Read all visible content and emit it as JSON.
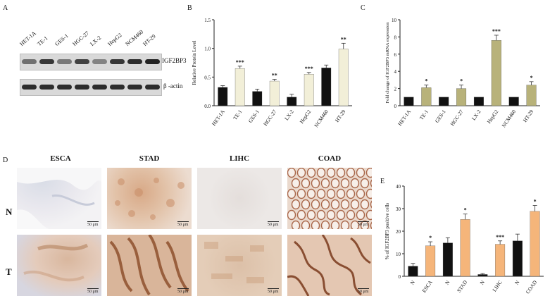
{
  "panels": {
    "A": "A",
    "B": "B",
    "C": "C",
    "D": "D",
    "E": "E"
  },
  "western_blot": {
    "lanes": [
      "HET-1A",
      "TE-1",
      "GES-1",
      "HGC-27",
      "LX-2",
      "HepG2",
      "NCM460",
      "HT-29"
    ],
    "rows": [
      "IGF2BP3",
      "β -actin"
    ],
    "igf2bp3_intensity": [
      0.55,
      0.85,
      0.5,
      0.8,
      0.45,
      0.85,
      0.9,
      0.95
    ]
  },
  "ihc": {
    "columns": [
      "ESCA",
      "STAD",
      "LIHC",
      "COAD"
    ],
    "rows": [
      "N",
      "T"
    ],
    "scale_label": "50 μm"
  },
  "chart_data": [
    {
      "id": "B",
      "type": "bar",
      "categories": [
        "HET-1A",
        "TE-1",
        "GES-1",
        "HGC-27",
        "LX-2",
        "HepG2",
        "NCM460",
        "HT-29"
      ],
      "values": [
        0.32,
        0.65,
        0.25,
        0.43,
        0.15,
        0.55,
        0.66,
        0.99
      ],
      "errors": [
        0.03,
        0.04,
        0.04,
        0.03,
        0.05,
        0.03,
        0.05,
        0.1
      ],
      "significance": [
        "",
        "***",
        "",
        "**",
        "",
        "***",
        "",
        "**"
      ],
      "bar_colors": [
        "#111111",
        "#f2efd8",
        "#111111",
        "#f2efd8",
        "#111111",
        "#f2efd8",
        "#111111",
        "#f2efd8"
      ],
      "ylabel": "Relative Protein Level",
      "ylim": [
        0,
        1.5
      ],
      "yticks": [
        "0.0",
        "0.5",
        "1.0",
        "1.5"
      ],
      "grid": false
    },
    {
      "id": "C",
      "type": "bar",
      "categories": [
        "HET-1A",
        "TE-1",
        "GES-1",
        "HGC-27",
        "LX-2",
        "HepG2",
        "NCM460",
        "HT-29"
      ],
      "values": [
        1.0,
        2.1,
        1.0,
        2.0,
        1.0,
        7.6,
        1.0,
        2.4
      ],
      "errors": [
        0,
        0.3,
        0,
        0.4,
        0,
        0.6,
        0,
        0.4
      ],
      "significance": [
        "",
        "*",
        "",
        "*",
        "",
        "***",
        "",
        "*"
      ],
      "bar_colors": [
        "#111111",
        "#b8b27a",
        "#111111",
        "#b8b27a",
        "#111111",
        "#b8b27a",
        "#111111",
        "#b8b27a"
      ],
      "ylabel": "Fold change of IGF2BP3 mRNA expression",
      "ylim": [
        0,
        10
      ],
      "yticks": [
        "0",
        "2",
        "4",
        "6",
        "8",
        "10"
      ],
      "grid": false
    },
    {
      "id": "E",
      "type": "bar",
      "categories": [
        "N",
        "ESCA",
        "N",
        "STAD",
        "N",
        "LIHC",
        "N",
        "COAD"
      ],
      "values": [
        4.5,
        13.5,
        14.8,
        25.2,
        0.8,
        14.2,
        15.7,
        28.8
      ],
      "errors": [
        1.2,
        1.8,
        2.3,
        2.4,
        0.4,
        1.5,
        3.0,
        2.6
      ],
      "significance": [
        "",
        "*",
        "",
        "*",
        "",
        "***",
        "",
        "*"
      ],
      "bar_colors": [
        "#111111",
        "#f5b57a",
        "#111111",
        "#f5b57a",
        "#111111",
        "#f5b57a",
        "#111111",
        "#f5b57a"
      ],
      "ylabel": "% of IGF2BP3 positive cells",
      "ylim": [
        0,
        40
      ],
      "yticks": [
        "0",
        "10",
        "20",
        "30",
        "40"
      ],
      "grid": false
    }
  ]
}
